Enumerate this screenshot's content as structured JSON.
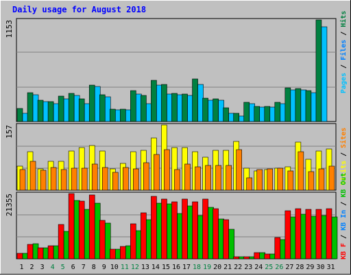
{
  "chart_data": [
    {
      "type": "bar",
      "title": "Daily usage for August 2018",
      "ymax_label": "1153",
      "legend": [
        "Pages",
        "Files",
        "Hits"
      ],
      "legend_colors": [
        "#00c0ff",
        "#0080ff",
        "#008040"
      ],
      "categories": [
        "1",
        "2",
        "3",
        "4",
        "5",
        "6",
        "7",
        "8",
        "9",
        "10",
        "11",
        "12",
        "13",
        "14",
        "15",
        "16",
        "17",
        "18",
        "19",
        "20",
        "21",
        "22",
        "23",
        "24",
        "25",
        "26",
        "27",
        "28",
        "29",
        "30",
        "31"
      ],
      "weekend_days": [
        "4",
        "5",
        "11",
        "12",
        "18",
        "19",
        "25",
        "26"
      ],
      "series": [
        {
          "name": "Hits",
          "color": "#008040",
          "values": [
            146,
            326,
            245,
            225,
            287,
            318,
            256,
            410,
            300,
            144,
            140,
            348,
            298,
            470,
            420,
            318,
            310,
            486,
            264,
            260,
            155,
            95,
            215,
            175,
            175,
            218,
            380,
            375,
            350,
            1153,
            0
          ]
        },
        {
          "name": "Files",
          "color": "#0080ff",
          "values": [
            0,
            0,
            0,
            0,
            0,
            0,
            0,
            0,
            0,
            0,
            0,
            0,
            0,
            0,
            0,
            0,
            0,
            0,
            0,
            0,
            0,
            0,
            0,
            0,
            0,
            0,
            0,
            0,
            0,
            0,
            0
          ]
        },
        {
          "name": "Pages",
          "color": "#00c0ff",
          "values": [
            95,
            306,
            226,
            206,
            255,
            296,
            205,
            400,
            282,
            135,
            130,
            314,
            200,
            415,
            314,
            302,
            295,
            418,
            240,
            240,
            90,
            60,
            205,
            160,
            160,
            205,
            360,
            360,
            330,
            1077,
            0
          ]
        }
      ]
    },
    {
      "type": "bar",
      "ymax_label": "157",
      "legend": [
        "Visits",
        "Sites"
      ],
      "legend_colors": [
        "#ffff00",
        "#ff8000"
      ],
      "categories": [
        "1",
        "2",
        "3",
        "4",
        "5",
        "6",
        "7",
        "8",
        "9",
        "10",
        "11",
        "12",
        "13",
        "14",
        "15",
        "16",
        "17",
        "18",
        "19",
        "20",
        "21",
        "22",
        "23",
        "24",
        "25",
        "26",
        "27",
        "28",
        "29",
        "30",
        "31"
      ],
      "series": [
        {
          "name": "Visits",
          "color": "#ffff00",
          "values": [
            58,
            93,
            51,
            69,
            69,
            95,
            102,
            108,
            94,
            52,
            64,
            93,
            96,
            126,
            157,
            102,
            102,
            93,
            80,
            96,
            96,
            118,
            53,
            47,
            50,
            53,
            56,
            115,
            74,
            94,
            99
          ]
        },
        {
          "name": "Sites",
          "color": "#ff8000",
          "values": [
            50,
            69,
            48,
            54,
            50,
            53,
            53,
            63,
            54,
            43,
            54,
            51,
            66,
            86,
            98,
            50,
            63,
            56,
            59,
            60,
            60,
            98,
            29,
            49,
            52,
            53,
            46,
            92,
            44,
            52,
            58
          ]
        }
      ]
    },
    {
      "type": "bar",
      "ymax_label": "21355",
      "legend": [
        "KB F",
        "KB In",
        "KB Out"
      ],
      "legend_colors": [
        "#ff0000",
        "#0080ff",
        "#00c000"
      ],
      "categories": [
        "1",
        "2",
        "3",
        "4",
        "5",
        "6",
        "7",
        "8",
        "9",
        "10",
        "11",
        "12",
        "13",
        "14",
        "15",
        "16",
        "17",
        "18",
        "19",
        "20",
        "21",
        "22",
        "23",
        "24",
        "25",
        "26",
        "27",
        "28",
        "29",
        "30",
        "31"
      ],
      "series": [
        {
          "name": "KB F",
          "color": "#ff0000",
          "values": [
            1700,
            4800,
            3500,
            4300,
            11200,
            21355,
            18900,
            21000,
            12500,
            3200,
            4100,
            11500,
            15100,
            20400,
            19500,
            18700,
            19500,
            18700,
            19500,
            16400,
            12800,
            630,
            600,
            2000,
            1500,
            7000,
            15800,
            16300,
            16100,
            16100,
            16400
          ]
        },
        {
          "name": "KB In",
          "color": "#0080ff",
          "values": [
            0,
            0,
            0,
            0,
            0,
            0,
            0,
            0,
            0,
            0,
            0,
            0,
            0,
            0,
            0,
            0,
            0,
            0,
            0,
            0,
            0,
            0,
            0,
            0,
            0,
            0,
            0,
            0,
            0,
            0,
            0
          ]
        },
        {
          "name": "KB Out",
          "color": "#00c000",
          "values": [
            1700,
            5000,
            3600,
            4300,
            9100,
            19000,
            16100,
            18300,
            11600,
            3200,
            4200,
            9300,
            12800,
            18300,
            18000,
            14900,
            17200,
            14100,
            16900,
            13000,
            9600,
            630,
            600,
            2000,
            1500,
            6400,
            13800,
            14600,
            14000,
            14100,
            13800
          ]
        }
      ]
    }
  ]
}
